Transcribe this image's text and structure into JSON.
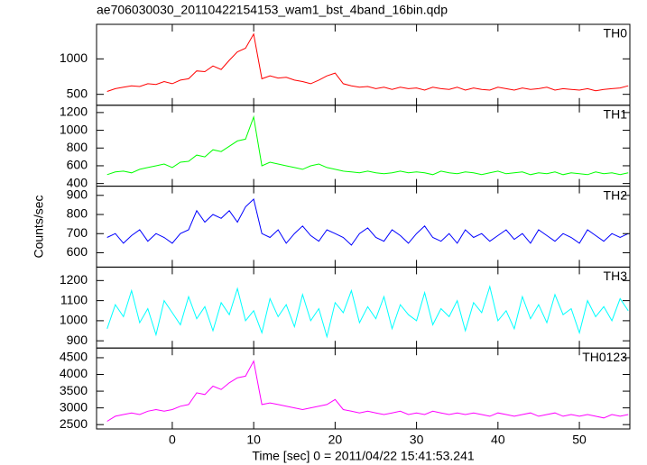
{
  "chart_data": [
    {
      "type": "line",
      "title": "ae706030030_20110422154153_wam1_bst_4band_16bin.qdp",
      "x": [
        -8,
        -7,
        -6,
        -5,
        -4,
        -3,
        -2,
        -1,
        0,
        1,
        2,
        3,
        4,
        5,
        6,
        7,
        8,
        9,
        10,
        11,
        12,
        13,
        14,
        15,
        16,
        17,
        18,
        19,
        20,
        21,
        22,
        23,
        24,
        25,
        26,
        27,
        28,
        29,
        30,
        31,
        32,
        33,
        34,
        35,
        36,
        37,
        38,
        39,
        40,
        41,
        42,
        43,
        44,
        45,
        46,
        47,
        48,
        49,
        50,
        51,
        52,
        53,
        54,
        55,
        56
      ],
      "xlim": [
        -9.3,
        56.2
      ],
      "xticks": [
        0,
        10,
        20,
        30,
        40,
        50
      ],
      "ylim": [
        346,
        1487
      ],
      "yticks": [
        500,
        1000
      ],
      "series": [
        {
          "name": "TH0",
          "color": "#ff0000",
          "values": [
            540,
            580,
            600,
            620,
            610,
            650,
            640,
            680,
            650,
            700,
            720,
            830,
            820,
            900,
            850,
            980,
            1100,
            1150,
            1350,
            720,
            760,
            730,
            740,
            700,
            680,
            650,
            700,
            760,
            800,
            650,
            620,
            600,
            610,
            580,
            600,
            570,
            600,
            580,
            590,
            560,
            600,
            580,
            570,
            600,
            560,
            590,
            570,
            560,
            600,
            580,
            560,
            590,
            570,
            580,
            600,
            560,
            580,
            570,
            560,
            580,
            550,
            570,
            580,
            590,
            620
          ]
        }
      ]
    },
    {
      "type": "line",
      "x": [
        -8,
        -7,
        -6,
        -5,
        -4,
        -3,
        -2,
        -1,
        0,
        1,
        2,
        3,
        4,
        5,
        6,
        7,
        8,
        9,
        10,
        11,
        12,
        13,
        14,
        15,
        16,
        17,
        18,
        19,
        20,
        21,
        22,
        23,
        24,
        25,
        26,
        27,
        28,
        29,
        30,
        31,
        32,
        33,
        34,
        35,
        36,
        37,
        38,
        39,
        40,
        41,
        42,
        43,
        44,
        45,
        46,
        47,
        48,
        49,
        50,
        51,
        52,
        53,
        54,
        55,
        56
      ],
      "xlim": [
        -9.3,
        56.2
      ],
      "xticks": [
        0,
        10,
        20,
        30,
        40,
        50
      ],
      "ylim": [
        370,
        1282
      ],
      "yticks": [
        400,
        600,
        800,
        1000,
        1200
      ],
      "series": [
        {
          "name": "TH1",
          "color": "#00ff00",
          "values": [
            500,
            530,
            540,
            520,
            560,
            580,
            600,
            620,
            580,
            640,
            650,
            720,
            700,
            780,
            760,
            820,
            880,
            900,
            1150,
            600,
            640,
            620,
            600,
            580,
            560,
            600,
            620,
            580,
            560,
            540,
            530,
            520,
            540,
            520,
            510,
            520,
            540,
            520,
            530,
            520,
            500,
            540,
            520,
            510,
            530,
            520,
            500,
            520,
            540,
            510,
            520,
            530,
            500,
            520,
            510,
            530,
            500,
            520,
            510,
            500,
            530,
            510,
            520,
            500,
            520
          ]
        }
      ]
    },
    {
      "type": "line",
      "ylabel": "Counts/sec",
      "x": [
        -8,
        -7,
        -6,
        -5,
        -4,
        -3,
        -2,
        -1,
        0,
        1,
        2,
        3,
        4,
        5,
        6,
        7,
        8,
        9,
        10,
        11,
        12,
        13,
        14,
        15,
        16,
        17,
        18,
        19,
        20,
        21,
        22,
        23,
        24,
        25,
        26,
        27,
        28,
        29,
        30,
        31,
        32,
        33,
        34,
        35,
        36,
        37,
        38,
        39,
        40,
        41,
        42,
        43,
        44,
        45,
        46,
        47,
        48,
        49,
        50,
        51,
        52,
        53,
        54,
        55,
        56
      ],
      "xlim": [
        -9.3,
        56.2
      ],
      "xticks": [
        0,
        10,
        20,
        30,
        40,
        50
      ],
      "ylim": [
        525,
        948
      ],
      "yticks": [
        600,
        700,
        800,
        900
      ],
      "series": [
        {
          "name": "TH2",
          "color": "#0000ff",
          "values": [
            680,
            700,
            650,
            690,
            720,
            660,
            700,
            680,
            650,
            700,
            720,
            820,
            760,
            800,
            780,
            820,
            760,
            840,
            880,
            700,
            680,
            720,
            650,
            700,
            740,
            690,
            660,
            720,
            700,
            680,
            640,
            700,
            730,
            680,
            660,
            720,
            690,
            650,
            700,
            740,
            680,
            660,
            700,
            650,
            720,
            680,
            700,
            660,
            690,
            720,
            670,
            700,
            650,
            720,
            690,
            660,
            700,
            680,
            650,
            720,
            690,
            660,
            700,
            680,
            700
          ]
        }
      ]
    },
    {
      "type": "line",
      "x": [
        -8,
        -7,
        -6,
        -5,
        -4,
        -3,
        -2,
        -1,
        0,
        1,
        2,
        3,
        4,
        5,
        6,
        7,
        8,
        9,
        10,
        11,
        12,
        13,
        14,
        15,
        16,
        17,
        18,
        19,
        20,
        21,
        22,
        23,
        24,
        25,
        26,
        27,
        28,
        29,
        30,
        31,
        32,
        33,
        34,
        35,
        36,
        37,
        38,
        39,
        40,
        41,
        42,
        43,
        44,
        45,
        46,
        47,
        48,
        49,
        50,
        51,
        52,
        53,
        54,
        55,
        56
      ],
      "xlim": [
        -9.3,
        56.2
      ],
      "xticks": [
        0,
        10,
        20,
        30,
        40,
        50
      ],
      "ylim": [
        864,
        1267
      ],
      "yticks": [
        900,
        1000,
        1100,
        1200
      ],
      "series": [
        {
          "name": "TH3",
          "color": "#00ffff",
          "values": [
            960,
            1080,
            1020,
            1150,
            990,
            1060,
            930,
            1100,
            1040,
            980,
            1120,
            1010,
            1070,
            950,
            1090,
            1030,
            1160,
            1000,
            1050,
            940,
            1110,
            1020,
            1080,
            970,
            1130,
            1000,
            1060,
            920,
            1090,
            1040,
            1150,
            990,
            1070,
            1010,
            1120,
            960,
            1080,
            1030,
            1000,
            1140,
            980,
            1060,
            1020,
            1100,
            950,
            1090,
            1040,
            1170,
            1000,
            1050,
            960,
            1120,
            1010,
            1080,
            990,
            1130,
            1030,
            1060,
            940,
            1100,
            1020,
            1070,
            1000,
            1110,
            1050
          ]
        }
      ]
    },
    {
      "type": "line",
      "xlabel": "Time [sec] 0 = 2011/04/22 15:41:53.241",
      "x": [
        -8,
        -7,
        -6,
        -5,
        -4,
        -3,
        -2,
        -1,
        0,
        1,
        2,
        3,
        4,
        5,
        6,
        7,
        8,
        9,
        10,
        11,
        12,
        13,
        14,
        15,
        16,
        17,
        18,
        19,
        20,
        21,
        22,
        23,
        24,
        25,
        26,
        27,
        28,
        29,
        30,
        31,
        32,
        33,
        34,
        35,
        36,
        37,
        38,
        39,
        40,
        41,
        42,
        43,
        44,
        45,
        46,
        47,
        48,
        49,
        50,
        51,
        52,
        53,
        54,
        55,
        56
      ],
      "xlim": [
        -9.3,
        56.2
      ],
      "xticks": [
        0,
        10,
        20,
        30,
        40,
        50
      ],
      "ylim": [
        2370,
        4790
      ],
      "yticks": [
        2500,
        3000,
        3500,
        4000,
        4500
      ],
      "series": [
        {
          "name": "TH0123",
          "color": "#ff00ff",
          "values": [
            2600,
            2750,
            2800,
            2850,
            2800,
            2900,
            2950,
            2900,
            2950,
            3050,
            3100,
            3450,
            3400,
            3650,
            3550,
            3750,
            3900,
            3950,
            4400,
            3100,
            3150,
            3100,
            3050,
            3000,
            2950,
            3000,
            3050,
            3100,
            3250,
            2950,
            2900,
            2850,
            2900,
            2850,
            2800,
            2850,
            2900,
            2800,
            2850,
            2800,
            2900,
            2850,
            2800,
            2850,
            2800,
            2850,
            2800,
            2750,
            2850,
            2800,
            2750,
            2800,
            2850,
            2750,
            2800,
            2850,
            2750,
            2800,
            2750,
            2800,
            2750,
            2700,
            2800,
            2750,
            2800
          ]
        }
      ]
    }
  ]
}
